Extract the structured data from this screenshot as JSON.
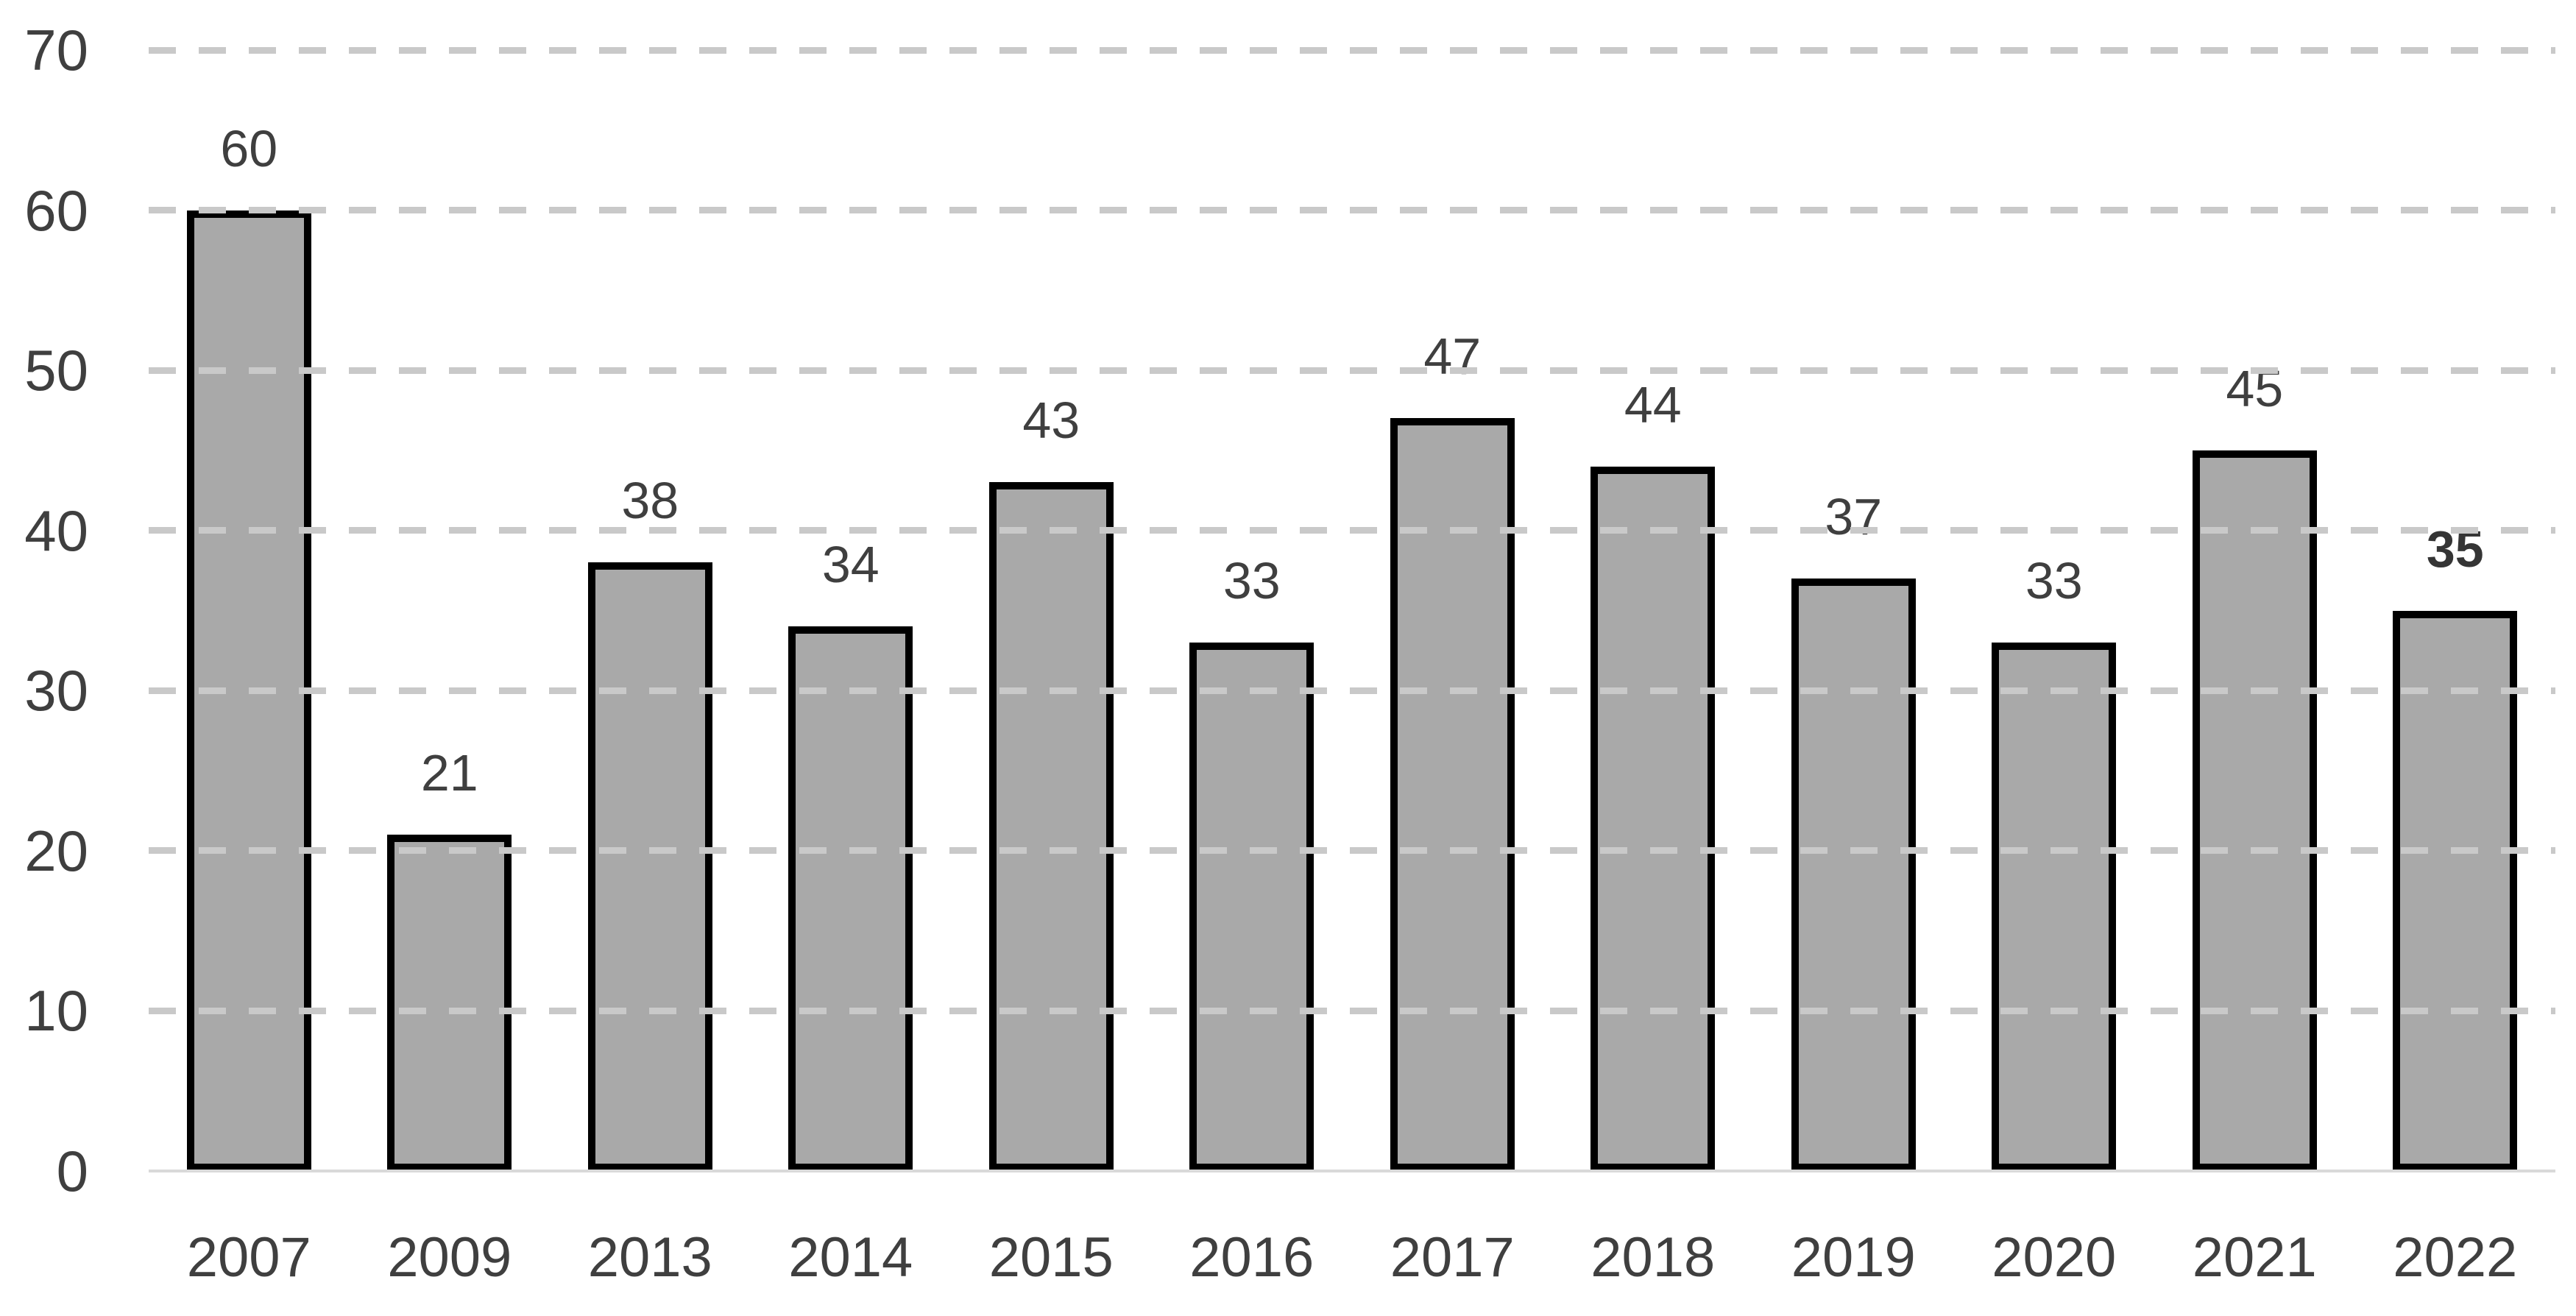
{
  "chart_data": {
    "type": "bar",
    "title": "",
    "xlabel": "",
    "ylabel": "",
    "categories": [
      "2007",
      "2009",
      "2013",
      "2014",
      "2015",
      "2016",
      "2017",
      "2018",
      "2019",
      "2020",
      "2021",
      "2022"
    ],
    "values": [
      60,
      21,
      38,
      34,
      43,
      33,
      47,
      44,
      37,
      33,
      45,
      35
    ],
    "data_labels": [
      "60",
      "21",
      "38",
      "34",
      "43",
      "33",
      "47",
      "44",
      "37",
      "33",
      "45",
      "35"
    ],
    "emphasized_category": "2022",
    "ylim": [
      0,
      70
    ],
    "yticks": [
      70,
      60,
      50,
      40,
      30,
      20,
      10,
      0
    ],
    "grid": "horizontal-dashed",
    "legend": "none",
    "colors": {
      "bar_fill": "#a9a9a9",
      "bar_border": "#000000",
      "gridline": "#c9c9c9",
      "axis_line": "#d9d9d9",
      "label_text": "#3f3f3f",
      "background": "#ffffff"
    }
  }
}
